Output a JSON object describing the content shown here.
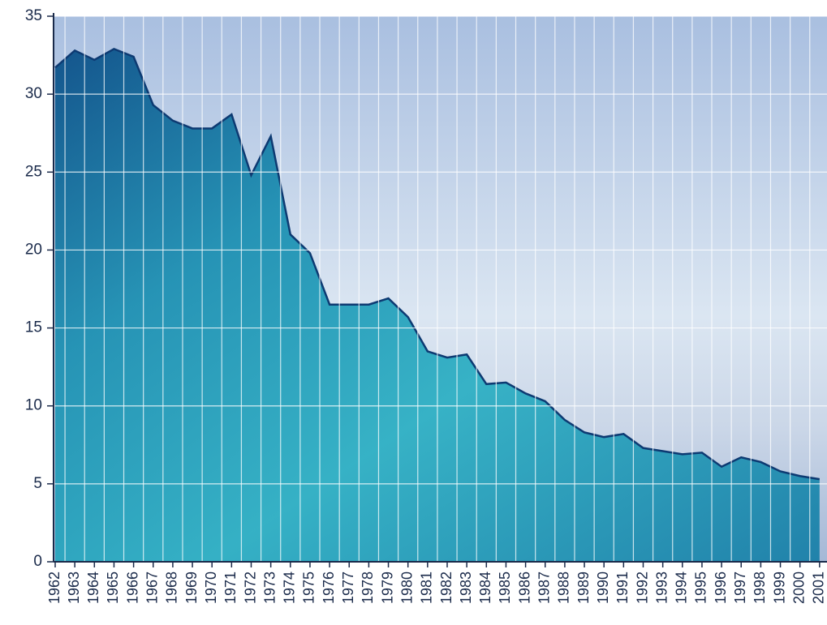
{
  "chart_data": {
    "type": "area",
    "categories": [
      "1962",
      "1963",
      "1964",
      "1965",
      "1966",
      "1967",
      "1968",
      "1969",
      "1970",
      "1971",
      "1972",
      "1973",
      "1974",
      "1975",
      "1976",
      "1977",
      "1978",
      "1979",
      "1980",
      "1981",
      "1982",
      "1983",
      "1984",
      "1985",
      "1986",
      "1987",
      "1988",
      "1989",
      "1990",
      "1991",
      "1992",
      "1993",
      "1994",
      "1995",
      "1996",
      "1997",
      "1998",
      "1999",
      "2000",
      "2001"
    ],
    "values": [
      31.7,
      32.8,
      32.2,
      32.9,
      32.4,
      29.3,
      28.3,
      27.8,
      27.8,
      28.7,
      24.8,
      27.3,
      21.0,
      19.8,
      16.5,
      16.5,
      16.5,
      16.9,
      15.7,
      13.5,
      13.1,
      13.3,
      11.4,
      11.5,
      10.8,
      10.3,
      9.1,
      8.3,
      8.0,
      8.2,
      7.3,
      7.1,
      6.9,
      7.0,
      6.1,
      6.7,
      6.4,
      5.8,
      5.5,
      5.3
    ],
    "color": "#1a8fb0",
    "ylim": [
      0,
      35
    ],
    "yticks": [
      0,
      5,
      10,
      15,
      20,
      25,
      30,
      35
    ],
    "grid": true
  }
}
